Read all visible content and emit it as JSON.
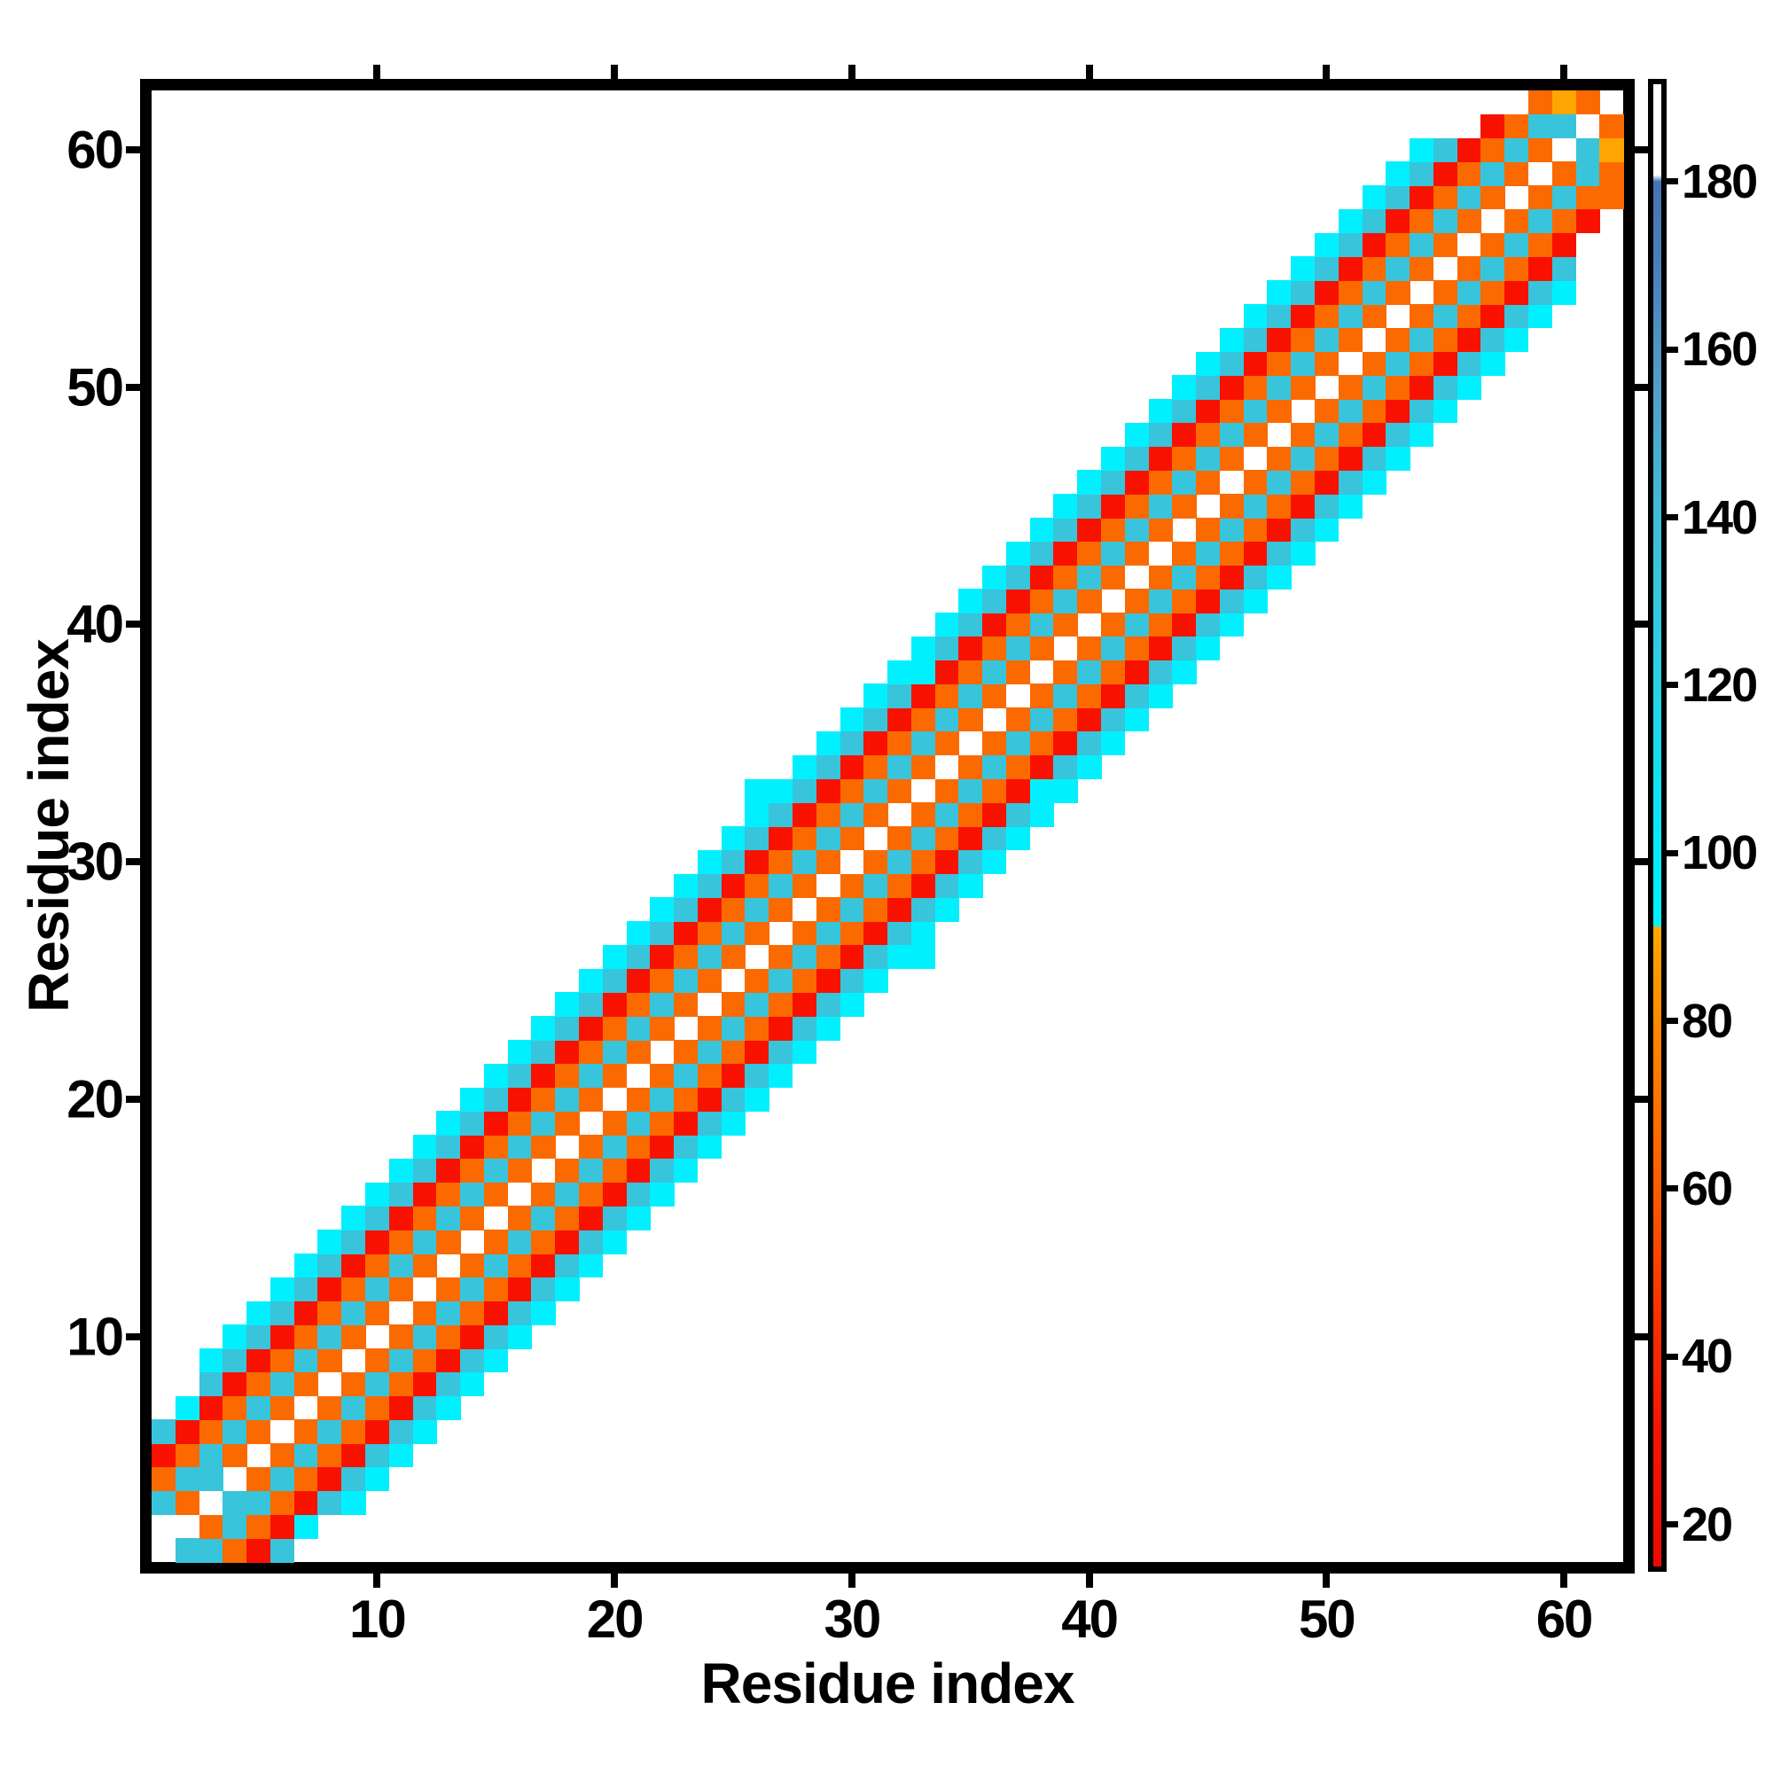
{
  "axes": {
    "xlabel": "Residue index",
    "ylabel": "Residue index"
  },
  "chart_data": {
    "type": "heatmap",
    "title": "",
    "xlabel": "Residue index",
    "ylabel": "Residue index",
    "matrix_size": 62,
    "x_range": [
      1,
      62
    ],
    "y_range": [
      1,
      62
    ],
    "x_ticks": [
      10,
      20,
      30,
      40,
      50,
      60
    ],
    "y_ticks": [
      10,
      20,
      30,
      40,
      50,
      60
    ],
    "grid": false,
    "description": "Symmetric residue-residue map; only cells with sequence separation |i-j| <= 6 are populated, forming a diagonal band. Cell value depends mainly on offset |i-j|.",
    "band_halfwidth": 6,
    "offset_codes": [
      "W",
      "o",
      "c",
      "o",
      "R",
      "c",
      "C"
    ],
    "code_values": {
      "W": null,
      "o": 66,
      "R": 27,
      "c": 136,
      "C": 95,
      "A": 89
    },
    "cell_palette": {
      "W": "#ffffff",
      "o": "#FB6A00",
      "R": "#F91100",
      "c": "#38C4DB",
      "C": "#00F0FF",
      "A": "#FFA503"
    },
    "anomalies": [
      {
        "i": 1,
        "j": 2,
        "code": "c"
      },
      {
        "i": 2,
        "j": 1,
        "code": "."
      },
      {
        "i": 1,
        "j": 7,
        "code": "."
      },
      {
        "i": 7,
        "j": 1,
        "code": "."
      },
      {
        "i": 2,
        "j": 7,
        "code": "C"
      },
      {
        "i": 7,
        "j": 2,
        "code": "C"
      },
      {
        "i": 2,
        "j": 8,
        "code": "."
      },
      {
        "i": 8,
        "j": 2,
        "code": "."
      },
      {
        "i": 3,
        "j": 4,
        "code": "c"
      },
      {
        "i": 4,
        "j": 3,
        "code": "c"
      },
      {
        "i": 26,
        "j": 33,
        "code": "C"
      },
      {
        "i": 33,
        "j": 26,
        "code": "C"
      },
      {
        "i": 33,
        "j": 38,
        "code": "C"
      },
      {
        "i": 38,
        "j": 33,
        "code": "C"
      },
      {
        "i": 55,
        "j": 61,
        "code": "."
      },
      {
        "i": 56,
        "j": 61,
        "code": "."
      },
      {
        "i": 61,
        "j": 55,
        "code": "."
      },
      {
        "i": 61,
        "j": 56,
        "code": "."
      },
      {
        "i": 56,
        "j": 62,
        "code": "."
      },
      {
        "i": 57,
        "j": 62,
        "code": "."
      },
      {
        "i": 62,
        "j": 56,
        "code": "."
      },
      {
        "i": 62,
        "j": 57,
        "code": "."
      },
      {
        "i": 62,
        "j": 58,
        "code": "."
      },
      {
        "i": 58,
        "j": 62,
        "code": "o"
      },
      {
        "i": 60,
        "j": 61,
        "code": "c"
      },
      {
        "i": 61,
        "j": 60,
        "code": "c"
      },
      {
        "i": 60,
        "j": 62,
        "code": "A"
      },
      {
        "i": 62,
        "j": 60,
        "code": "A"
      }
    ],
    "colorbar": {
      "vmin": 15,
      "vmax": 191.6,
      "ticks": [
        20,
        40,
        60,
        80,
        100,
        120,
        140,
        160,
        180
      ],
      "gradient_stops": [
        {
          "v": 15,
          "color": "#EC0A00"
        },
        {
          "v": 30,
          "color": "#F51300"
        },
        {
          "v": 45,
          "color": "#FA3000"
        },
        {
          "v": 60,
          "color": "#FD5C00"
        },
        {
          "v": 75,
          "color": "#FE7D00"
        },
        {
          "v": 88,
          "color": "#FF9F00"
        },
        {
          "v": 91,
          "color": "#FFAB00"
        },
        {
          "v": 91.5,
          "color": "#00F2FF"
        },
        {
          "v": 105,
          "color": "#0CE4F4"
        },
        {
          "v": 125,
          "color": "#30CCE2"
        },
        {
          "v": 140,
          "color": "#3FBDD8"
        },
        {
          "v": 155,
          "color": "#529FCA"
        },
        {
          "v": 170,
          "color": "#4B7FBA"
        },
        {
          "v": 180,
          "color": "#4574B2"
        },
        {
          "v": 180.8,
          "color": "#FFFFFF"
        },
        {
          "v": 191.6,
          "color": "#FFFFFF"
        }
      ]
    }
  }
}
